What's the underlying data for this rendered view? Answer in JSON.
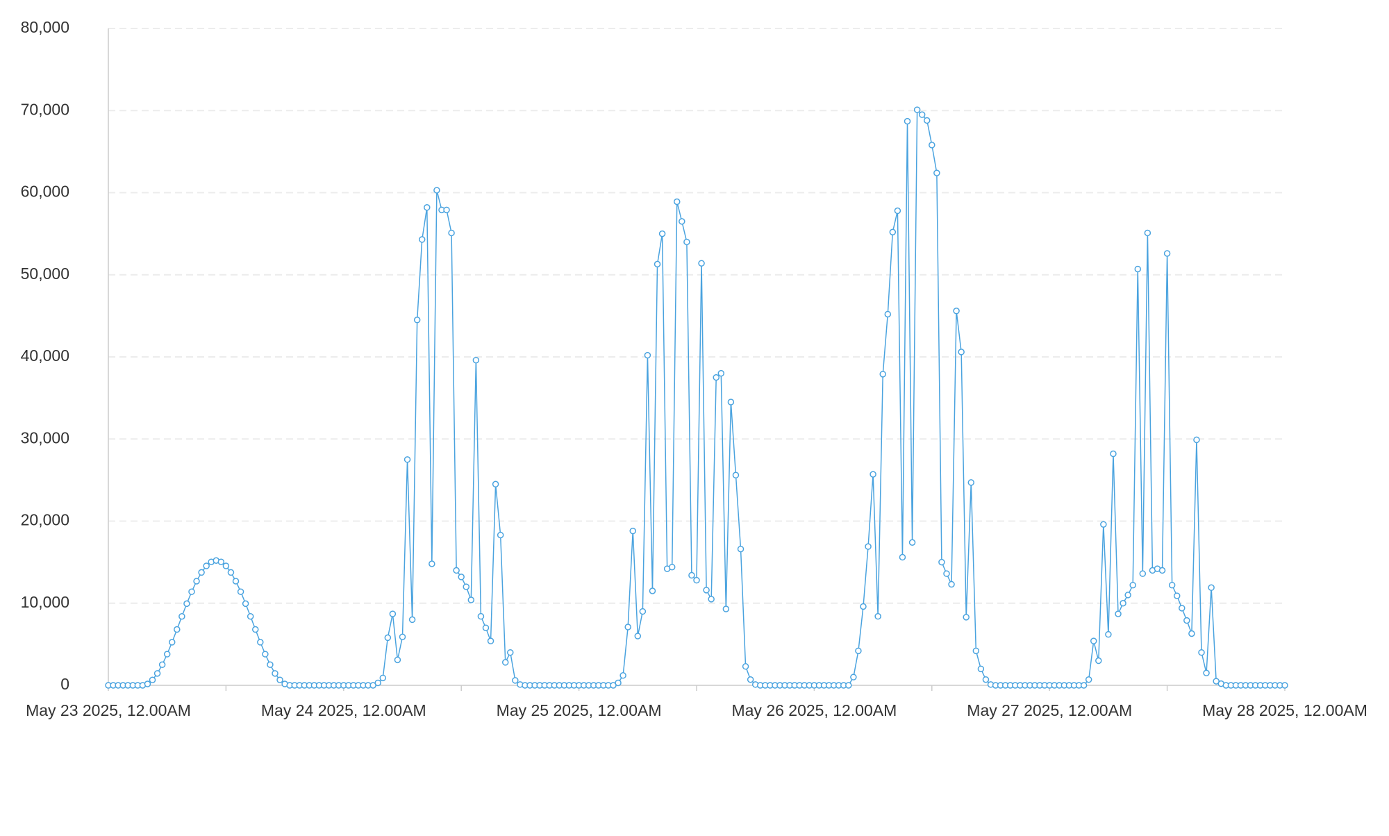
{
  "chart_data": {
    "type": "line",
    "x": [
      0,
      0.5,
      1,
      1.5,
      2,
      2.5,
      3,
      3.5,
      4,
      4.5,
      5,
      5.5,
      6,
      6.5,
      7,
      7.5,
      8,
      8.5,
      9,
      9.5,
      10,
      10.5,
      11,
      11.5,
      12,
      12.5,
      13,
      13.5,
      14,
      14.5,
      15,
      15.5,
      16,
      16.5,
      17,
      17.5,
      18,
      18.5,
      19,
      19.5,
      20,
      20.5,
      21,
      21.5,
      22,
      22.5,
      23,
      23.5,
      24,
      24.5,
      25,
      25.5,
      26,
      26.5,
      27,
      27.5,
      28,
      28.5,
      29,
      29.5,
      30,
      30.5,
      31,
      31.5,
      32,
      32.5,
      33,
      33.5,
      34,
      34.5,
      35,
      35.5,
      36,
      36.5,
      37,
      37.5,
      38,
      38.5,
      39,
      39.5,
      40,
      40.5,
      41,
      41.5,
      42,
      42.5,
      43,
      43.5,
      44,
      44.5,
      45,
      45.5,
      46,
      46.5,
      47,
      47.5,
      48,
      48.5,
      49,
      49.5,
      50,
      50.5,
      51,
      51.5,
      52,
      52.5,
      53,
      53.5,
      54,
      54.5,
      55,
      55.5,
      56,
      56.5,
      57,
      57.5,
      58,
      58.5,
      59,
      59.5,
      60,
      60.5,
      61,
      61.5,
      62,
      62.5,
      63,
      63.5,
      64,
      64.5,
      65,
      65.5,
      66,
      66.5,
      67,
      67.5,
      68,
      68.5,
      69,
      69.5,
      70,
      70.5,
      71,
      71.5,
      72,
      72.5,
      73,
      73.5,
      74,
      74.5,
      75,
      75.5,
      76,
      76.5,
      77,
      77.5,
      78,
      78.5,
      79,
      79.5,
      80,
      80.5,
      81,
      81.5,
      82,
      82.5,
      83,
      83.5,
      84,
      84.5,
      85,
      85.5,
      86,
      86.5,
      87,
      87.5,
      88,
      88.5,
      89,
      89.5,
      90,
      90.5,
      91,
      91.5,
      92,
      92.5,
      93,
      93.5,
      94,
      94.5,
      95,
      95.5,
      96,
      96.5,
      97,
      97.5,
      98,
      98.5,
      99,
      99.5,
      100,
      100.5,
      101,
      101.5,
      102,
      102.5,
      103,
      103.5,
      104,
      104.5,
      105,
      105.5,
      106,
      106.5,
      107,
      107.5,
      108,
      108.5,
      109,
      109.5,
      110,
      110.5,
      111,
      111.5,
      112,
      112.5,
      113,
      113.5,
      114,
      114.5,
      115,
      115.5,
      116,
      116.5,
      117,
      117.5,
      118,
      118.5,
      119,
      119.5,
      120
    ],
    "values": [
      0,
      0,
      0,
      0,
      0,
      0,
      0,
      0,
      166,
      657,
      1451,
      2514,
      3800,
      5252,
      6805,
      8395,
      9948,
      11400,
      12686,
      13749,
      14543,
      15034,
      15200,
      15034,
      14543,
      13749,
      12686,
      11400,
      9948,
      8395,
      6805,
      5252,
      3800,
      2514,
      1451,
      657,
      166,
      0,
      0,
      0,
      0,
      0,
      0,
      0,
      0,
      0,
      0,
      0,
      0,
      0,
      0,
      0,
      0,
      0,
      0,
      300,
      900,
      5800,
      8700,
      3100,
      5900,
      27500,
      8000,
      44500,
      54300,
      58200,
      14800,
      60300,
      57900,
      57900,
      55100,
      14000,
      13200,
      12000,
      10400,
      39600,
      8400,
      7000,
      5400,
      24500,
      18300,
      2800,
      4000,
      600,
      100,
      0,
      0,
      0,
      0,
      0,
      0,
      0,
      0,
      0,
      0,
      0,
      0,
      0,
      0,
      0,
      0,
      0,
      0,
      0,
      300,
      1200,
      7100,
      18800,
      6000,
      9000,
      40200,
      11500,
      51300,
      55000,
      14200,
      14400,
      58900,
      56500,
      54000,
      13400,
      12800,
      51400,
      11600,
      10500,
      37500,
      38000,
      9300,
      34500,
      25600,
      16600,
      2300,
      700,
      100,
      0,
      0,
      0,
      0,
      0,
      0,
      0,
      0,
      0,
      0,
      0,
      0,
      0,
      0,
      0,
      0,
      0,
      0,
      0,
      1000,
      4200,
      9600,
      16900,
      25700,
      8400,
      37900,
      45200,
      55200,
      57800,
      15600,
      68700,
      17400,
      70100,
      69500,
      68800,
      65800,
      62400,
      15000,
      13600,
      12300,
      45600,
      40600,
      8300,
      24700,
      4200,
      2000,
      700,
      100,
      0,
      0,
      0,
      0,
      0,
      0,
      0,
      0,
      0,
      0,
      0,
      0,
      0,
      0,
      0,
      0,
      0,
      0,
      0,
      700,
      5400,
      3000,
      19600,
      6200,
      28200,
      8700,
      10000,
      11000,
      12200,
      50700,
      13600,
      55100,
      14000,
      14200,
      14000,
      52600,
      12200,
      10900,
      9400,
      7900,
      6300,
      29900,
      4000,
      1500,
      11900,
      500,
      200,
      0,
      0,
      0,
      0,
      0,
      0,
      0,
      0,
      0,
      0,
      0,
      0,
      0
    ],
    "color": "#4aa3df",
    "xlim": [
      0,
      120
    ],
    "xticks": [
      {
        "value": 0,
        "label": "May 23 2025, 12.00AM"
      },
      {
        "value": 24,
        "label": "May 24 2025, 12.00AM"
      },
      {
        "value": 48,
        "label": "May 25 2025, 12.00AM"
      },
      {
        "value": 72,
        "label": "May 26 2025, 12.00AM"
      },
      {
        "value": 96,
        "label": "May 27 2025, 12.00AM"
      },
      {
        "value": 120,
        "label": "May 28 2025, 12.00AM"
      }
    ],
    "xminorticks": [
      12,
      36,
      60,
      84,
      108
    ],
    "ylim": [
      0,
      80000
    ],
    "yticks": [
      0,
      {
        "value": 10000,
        "label": "10,000"
      },
      {
        "value": 20000,
        "label": "20,000"
      },
      {
        "value": 30000,
        "label": "30,000"
      },
      {
        "value": 40000,
        "label": "40,000"
      },
      {
        "value": 50000,
        "label": "50,000"
      },
      {
        "value": 60000,
        "label": "60,000"
      },
      {
        "value": 70000,
        "label": "70,000"
      },
      {
        "value": 80000,
        "label": "80,000"
      }
    ],
    "grid": true
  }
}
